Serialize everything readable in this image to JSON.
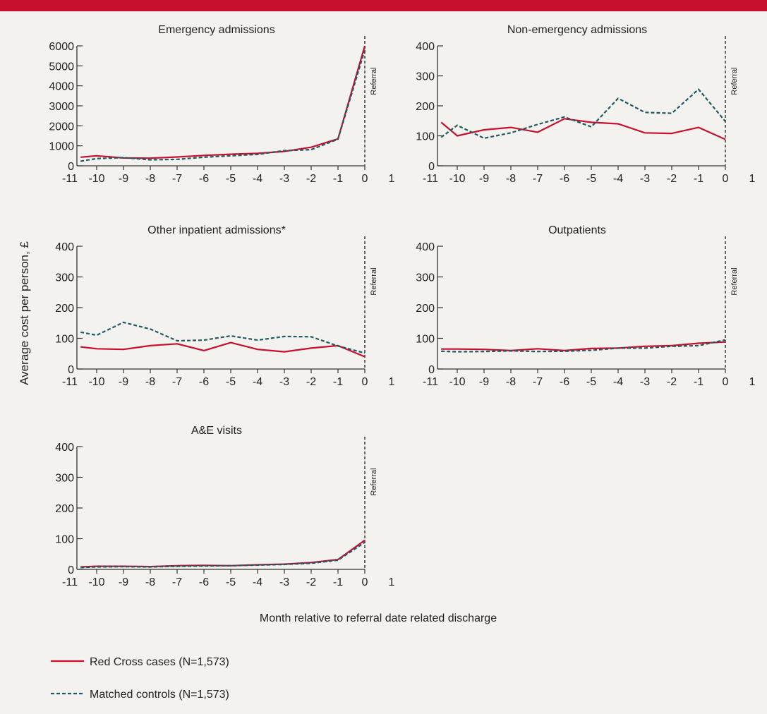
{
  "colors": {
    "accent_bar": "#c8102e",
    "red_cross": "#c8102e",
    "matched": "#1e5a63",
    "referral_line": "#666666",
    "background": "#f3f2ee",
    "axis": "#333333"
  },
  "ylabel": "Average cost per person, £",
  "xlabel": "Month relative to referral date related discharge",
  "referral_label": "Referral",
  "x_ticks": [
    -11,
    -10,
    -9,
    -8,
    -7,
    -6,
    -5,
    -4,
    -3,
    -2,
    -1,
    0,
    1
  ],
  "legend": [
    {
      "label": "Red Cross cases (N=1,573)",
      "style": "solid"
    },
    {
      "label": "Matched controls (N=1,573)",
      "style": "dashed"
    }
  ],
  "chart_data": [
    {
      "type": "line",
      "title": "Emergency admissions",
      "xlim": [
        -11,
        1
      ],
      "ylim": [
        0,
        6000
      ],
      "yticks": [
        0,
        1000,
        2000,
        3000,
        4000,
        5000,
        6000
      ],
      "x": [
        -10.6,
        -10,
        -9,
        -8,
        -7,
        -6,
        -5,
        -4,
        -3,
        -2,
        -1,
        0
      ],
      "series": [
        {
          "name": "Red Cross cases (N=1,573)",
          "values": [
            430,
            500,
            390,
            380,
            440,
            520,
            580,
            620,
            720,
            930,
            1350,
            6000
          ]
        },
        {
          "name": "Matched controls (N=1,573)",
          "values": [
            230,
            360,
            410,
            300,
            320,
            430,
            500,
            570,
            760,
            810,
            1330,
            5800
          ]
        }
      ]
    },
    {
      "type": "line",
      "title": "Non-emergency admissions",
      "xlim": [
        -11,
        1
      ],
      "ylim": [
        0,
        400
      ],
      "yticks": [
        0,
        100,
        200,
        300,
        400
      ],
      "x": [
        -10.6,
        -10,
        -9,
        -8,
        -7,
        -6,
        -5,
        -4,
        -3,
        -2,
        -1,
        0
      ],
      "series": [
        {
          "name": "Red Cross cases (N=1,573)",
          "values": [
            145,
            100,
            120,
            128,
            112,
            157,
            145,
            140,
            110,
            108,
            128,
            88
          ]
        },
        {
          "name": "Matched controls (N=1,573)",
          "values": [
            95,
            135,
            92,
            110,
            138,
            163,
            130,
            225,
            178,
            175,
            255,
            148
          ]
        }
      ]
    },
    {
      "type": "line",
      "title": "Other inpatient admissions*",
      "xlim": [
        -11,
        1
      ],
      "ylim": [
        0,
        400
      ],
      "yticks": [
        0,
        100,
        200,
        300,
        400
      ],
      "x": [
        -10.6,
        -10,
        -9,
        -8,
        -7,
        -6,
        -5,
        -4,
        -3,
        -2,
        -1,
        0
      ],
      "series": [
        {
          "name": "Red Cross cases (N=1,573)",
          "values": [
            72,
            66,
            64,
            76,
            82,
            60,
            86,
            64,
            56,
            68,
            76,
            40
          ]
        },
        {
          "name": "Matched controls (N=1,573)",
          "values": [
            120,
            110,
            152,
            130,
            92,
            94,
            108,
            94,
            106,
            105,
            75,
            52
          ]
        }
      ]
    },
    {
      "type": "line",
      "title": "Outpatients",
      "xlim": [
        -11,
        1
      ],
      "ylim": [
        0,
        400
      ],
      "yticks": [
        0,
        100,
        200,
        300,
        400
      ],
      "x": [
        -10.6,
        -10,
        -9,
        -8,
        -7,
        -6,
        -5,
        -4,
        -3,
        -2,
        -1,
        0
      ],
      "series": [
        {
          "name": "Red Cross cases (N=1,573)",
          "values": [
            65,
            65,
            64,
            60,
            66,
            60,
            67,
            68,
            74,
            76,
            84,
            88
          ]
        },
        {
          "name": "Matched controls (N=1,573)",
          "values": [
            58,
            56,
            57,
            59,
            57,
            58,
            61,
            68,
            68,
            74,
            76,
            95
          ]
        }
      ]
    },
    {
      "type": "line",
      "title": "A&E visits",
      "xlim": [
        -11,
        1
      ],
      "ylim": [
        0,
        400
      ],
      "yticks": [
        0,
        100,
        200,
        300,
        400
      ],
      "x": [
        -10.6,
        -10,
        -9,
        -8,
        -7,
        -6,
        -5,
        -4,
        -3,
        -2,
        -1,
        0
      ],
      "series": [
        {
          "name": "Red Cross cases (N=1,573)",
          "values": [
            8,
            10,
            10,
            9,
            12,
            13,
            12,
            15,
            17,
            22,
            32,
            95
          ]
        },
        {
          "name": "Matched controls (N=1,573)",
          "values": [
            6,
            8,
            9,
            8,
            10,
            11,
            12,
            14,
            16,
            20,
            30,
            88
          ]
        }
      ]
    }
  ]
}
